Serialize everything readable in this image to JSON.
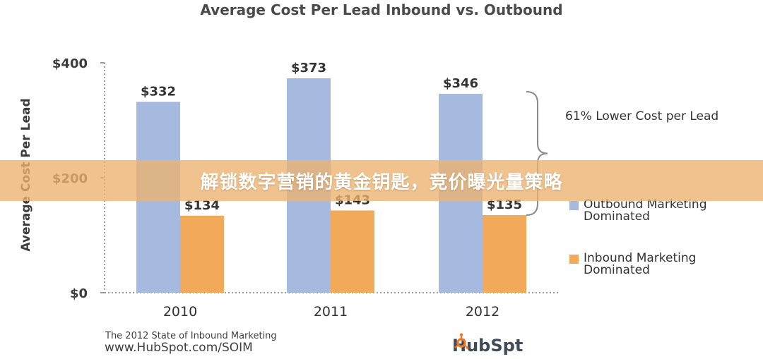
{
  "chart_data": {
    "type": "bar",
    "title": "Average Cost Per Lead Inbound vs. Outbound",
    "ylabel": "Average Cost Per Lead",
    "xlabel": "",
    "categories": [
      "2010",
      "2011",
      "2012"
    ],
    "series": [
      {
        "name": "Outbound Marketing Dominated",
        "values": [
          332,
          373,
          346
        ],
        "color": "#a6b9de"
      },
      {
        "name": "Inbound Marketing Dominated",
        "values": [
          134,
          143,
          135
        ],
        "color": "#f2aa5a"
      }
    ],
    "data_labels": [
      [
        "$332",
        "$373",
        "$346"
      ],
      [
        "$134",
        "$143",
        "$135"
      ]
    ],
    "ylim": [
      0,
      400
    ],
    "yticks": [
      0,
      200,
      400
    ],
    "ytick_labels": [
      "$0",
      "$200",
      "$400"
    ],
    "grid": false,
    "legend_position": "right",
    "annotation": "61% Lower Cost per Lead"
  },
  "source": {
    "line1": "The 2012 State of Inbound Marketing",
    "line2": "www.HubSpot.com/SOIM"
  },
  "logo": {
    "before": "HubSp",
    "after": "t",
    "icon": "sprocket-icon",
    "color": "#f47622"
  },
  "banner": {
    "text": "解锁数字营销的黄金钥匙，竞价曝光量策略",
    "color": "#ecb26e"
  }
}
